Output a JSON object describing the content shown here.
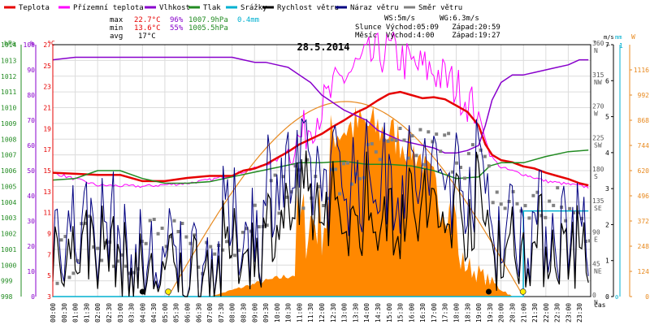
{
  "chart_data": {
    "type": "line",
    "title": "28.5.2014",
    "legend": [
      {
        "name": "Teplota",
        "color": "#e60000"
      },
      {
        "name": "Přízemní teplota",
        "color": "#ff00ff"
      },
      {
        "name": "Vlhkost",
        "color": "#8800cc"
      },
      {
        "name": "Tlak",
        "color": "#228b22"
      },
      {
        "name": "Srážky",
        "color": "#00b0d0"
      },
      {
        "name": "Rychlost větru",
        "color": "#000000"
      },
      {
        "name": "Náraz větru",
        "color": "#000080"
      },
      {
        "name": "Směr větru",
        "color": "#808080"
      }
    ],
    "stats": {
      "max": {
        "label": "max",
        "temp": "22.7°C",
        "hum": "96%",
        "press": "1007.9hPa",
        "rain": "0.4mm"
      },
      "min": {
        "label": "min",
        "temp": "13.6°C",
        "hum": "55%",
        "press": "1005.5hPa"
      },
      "avg": {
        "label": "avg",
        "temp": "17°C"
      }
    },
    "info": {
      "ws": "WS:5m/s",
      "wg": "WG:6.3m/s",
      "sun": "Slunce Východ:05:09   Západ:20:59",
      "moon": "Měsíc  Východ:4:00    Západ:19:27"
    },
    "axes": {
      "hpa_unit": "hPa",
      "pct_unit": "%",
      "c_unit": "°C",
      "hpa": [
        "1014",
        "1013",
        "1012",
        "1011",
        "1010",
        "1009",
        "1008",
        "1007",
        "1006",
        "1005",
        "1004",
        "1003",
        "1002",
        "1001",
        "1000",
        "999",
        "998"
      ],
      "pct": [
        "100",
        "90",
        "80",
        "70",
        "60",
        "50",
        "40",
        "30",
        "20",
        "10",
        "0"
      ],
      "c": [
        "27",
        "25",
        "23",
        "21",
        "19",
        "17",
        "15",
        "13",
        "11",
        "9",
        "7",
        "5",
        "3"
      ],
      "deg_unit": "°",
      "deg": [
        "360 N",
        "315 NW",
        "270 W",
        "225 SW",
        "180 S",
        "135 SE",
        "90 E",
        "45 NE",
        "0 N"
      ],
      "ms_unit": "m/s",
      "ms_top": "~",
      "ms": [
        "7",
        "6",
        "5",
        "4",
        "3",
        "2",
        "1",
        "0"
      ],
      "mm_unit": "mm",
      "mm_top": "1",
      "mm_zero": "0",
      "w_unit": "W",
      "w": [
        "1116",
        "992",
        "868",
        "744",
        "620",
        "496",
        "372",
        "248",
        "124",
        "0"
      ],
      "xlabel": "čas",
      "x": [
        "00:00",
        "00:30",
        "01:00",
        "01:30",
        "02:00",
        "02:30",
        "03:00",
        "03:30",
        "04:00",
        "04:30",
        "05:00",
        "05:30",
        "06:00",
        "06:30",
        "07:00",
        "07:30",
        "08:00",
        "08:30",
        "09:00",
        "09:30",
        "10:00",
        "10:30",
        "11:00",
        "11:30",
        "12:00",
        "12:30",
        "13:00",
        "13:30",
        "14:00",
        "14:30",
        "15:00",
        "15:30",
        "16:00",
        "16:30",
        "17:00",
        "17:30",
        "18:00",
        "18:30",
        "19:00",
        "19:30",
        "20:00",
        "20:30",
        "21:00",
        "21:30",
        "22:00",
        "22:30",
        "23:00",
        "23:30"
      ]
    },
    "series": [
      {
        "name": "Teplota",
        "unit": "°C",
        "color": "#e60000",
        "points": [
          [
            0,
            14.8
          ],
          [
            1,
            14.7
          ],
          [
            2,
            14.6
          ],
          [
            3,
            14.6
          ],
          [
            4,
            14.0
          ],
          [
            5,
            14.0
          ],
          [
            6,
            14.3
          ],
          [
            7,
            14.5
          ],
          [
            8,
            14.5
          ],
          [
            8.5,
            15.0
          ],
          [
            9,
            15.2
          ],
          [
            9.5,
            15.6
          ],
          [
            10,
            16.2
          ],
          [
            10.5,
            16.8
          ],
          [
            11,
            17.5
          ],
          [
            11.5,
            18.0
          ],
          [
            12,
            18.5
          ],
          [
            12.5,
            19.2
          ],
          [
            13,
            19.8
          ],
          [
            13.5,
            20.5
          ],
          [
            14,
            21.0
          ],
          [
            14.5,
            21.7
          ],
          [
            15,
            22.3
          ],
          [
            15.5,
            22.5
          ],
          [
            16,
            22.2
          ],
          [
            16.5,
            21.9
          ],
          [
            17,
            22.0
          ],
          [
            17.5,
            21.8
          ],
          [
            18,
            21.2
          ],
          [
            18.5,
            20.6
          ],
          [
            19,
            19.3
          ],
          [
            19.3,
            17.5
          ],
          [
            19.6,
            16.5
          ],
          [
            20,
            16.0
          ],
          [
            20.5,
            15.8
          ],
          [
            21,
            15.4
          ],
          [
            21.5,
            15.2
          ],
          [
            22,
            14.8
          ],
          [
            22.5,
            14.5
          ],
          [
            23,
            14.2
          ],
          [
            23.5,
            13.8
          ],
          [
            23.9,
            13.6
          ]
        ]
      },
      {
        "name": "Vlhkost",
        "unit": "%",
        "color": "#8800cc",
        "points": [
          [
            0,
            94
          ],
          [
            1,
            95
          ],
          [
            2,
            95
          ],
          [
            3,
            95
          ],
          [
            4,
            95
          ],
          [
            5,
            95
          ],
          [
            6,
            95
          ],
          [
            7,
            95
          ],
          [
            8,
            95
          ],
          [
            8.5,
            94
          ],
          [
            9,
            93
          ],
          [
            9.5,
            93
          ],
          [
            10,
            92
          ],
          [
            10.5,
            91
          ],
          [
            11,
            88
          ],
          [
            11.5,
            85
          ],
          [
            12,
            80
          ],
          [
            12.5,
            77
          ],
          [
            13,
            74
          ],
          [
            13.5,
            72
          ],
          [
            14,
            70
          ],
          [
            14.5,
            66
          ],
          [
            15,
            64
          ],
          [
            15.5,
            62
          ],
          [
            16,
            61
          ],
          [
            16.5,
            60
          ],
          [
            17,
            59
          ],
          [
            17.5,
            57
          ],
          [
            18,
            57
          ],
          [
            18.5,
            58
          ],
          [
            19,
            60
          ],
          [
            19.3,
            68
          ],
          [
            19.6,
            78
          ],
          [
            20,
            85
          ],
          [
            20.5,
            88
          ],
          [
            21,
            88
          ],
          [
            21.5,
            89
          ],
          [
            22,
            90
          ],
          [
            22.5,
            91
          ],
          [
            23,
            92
          ],
          [
            23.5,
            94
          ],
          [
            23.9,
            94
          ]
        ]
      },
      {
        "name": "Tlak",
        "unit": "hPa",
        "color": "#228b22",
        "points": [
          [
            0,
            1005.4
          ],
          [
            1,
            1005.5
          ],
          [
            2,
            1006.0
          ],
          [
            3,
            1006.0
          ],
          [
            4,
            1005.5
          ],
          [
            5,
            1005.2
          ],
          [
            6,
            1005.2
          ],
          [
            7,
            1005.3
          ],
          [
            8,
            1005.6
          ],
          [
            9,
            1005.9
          ],
          [
            10,
            1006.2
          ],
          [
            11,
            1006.5
          ],
          [
            12,
            1006.5
          ],
          [
            13,
            1006.6
          ],
          [
            14,
            1006.4
          ],
          [
            15,
            1006.4
          ],
          [
            16,
            1006.3
          ],
          [
            17,
            1006.0
          ],
          [
            18,
            1005.5
          ],
          [
            19,
            1005.6
          ],
          [
            19.5,
            1006.3
          ],
          [
            20,
            1006.5
          ],
          [
            21,
            1006.5
          ],
          [
            22,
            1006.9
          ],
          [
            23,
            1007.2
          ],
          [
            23.9,
            1007.3
          ]
        ]
      },
      {
        "name": "Srážky",
        "unit": "mm",
        "color": "#00b0d0",
        "points": [
          [
            0,
            0
          ],
          [
            20.99,
            0
          ],
          [
            21,
            0.34
          ],
          [
            23.9,
            0.34
          ]
        ]
      }
    ]
  }
}
